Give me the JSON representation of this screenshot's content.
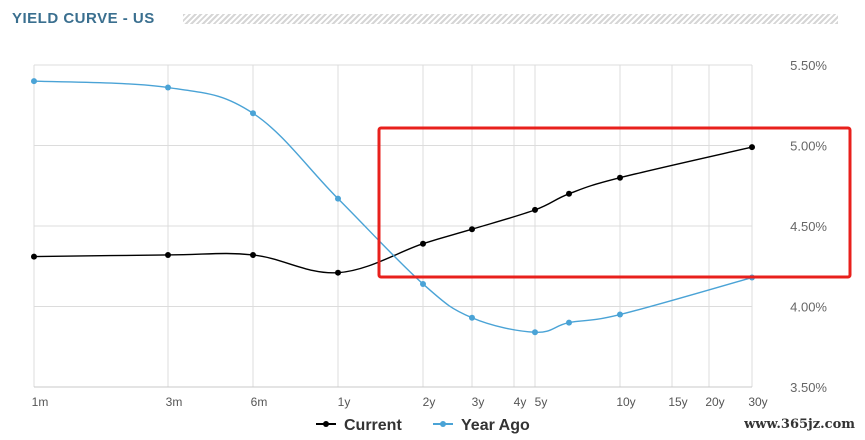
{
  "header": {
    "title": "YIELD CURVE - US"
  },
  "watermark": "www.365jz.com",
  "colors": {
    "current": "#000000",
    "year_ago": "#4aa3d6",
    "highlight": "#e8201c",
    "grid": "#dcdcdc"
  },
  "chart_data": {
    "type": "line",
    "title": "YIELD CURVE - US",
    "xlabel": "",
    "ylabel": "",
    "categories": [
      "1m",
      "3m",
      "6m",
      "1y",
      "2y",
      "3y",
      "4y",
      "5y",
      "10y",
      "15y",
      "20y",
      "30y"
    ],
    "x_maturity_months": [
      1,
      3,
      6,
      12,
      24,
      36,
      48,
      60,
      120,
      180,
      240,
      360
    ],
    "ylim": [
      3.5,
      5.5
    ],
    "yticks": [
      "3.50%",
      "4.00%",
      "4.50%",
      "5.00%",
      "5.50%"
    ],
    "grid": true,
    "legend_position": "bottom-center",
    "series": [
      {
        "name": "Current",
        "points": [
          {
            "x": 1,
            "y": 4.31
          },
          {
            "x": 3,
            "y": 4.32
          },
          {
            "x": 6,
            "y": 4.32
          },
          {
            "x": 12,
            "y": 4.21
          },
          {
            "x": 24,
            "y": 4.39
          },
          {
            "x": 36,
            "y": 4.48
          },
          {
            "x": 60,
            "y": 4.6
          },
          {
            "x": 84,
            "y": 4.7
          },
          {
            "x": 120,
            "y": 4.8
          },
          {
            "x": 360,
            "y": 4.99
          }
        ]
      },
      {
        "name": "Year Ago",
        "points": [
          {
            "x": 1,
            "y": 5.4
          },
          {
            "x": 3,
            "y": 5.36
          },
          {
            "x": 6,
            "y": 5.2
          },
          {
            "x": 12,
            "y": 4.67
          },
          {
            "x": 24,
            "y": 4.14
          },
          {
            "x": 36,
            "y": 3.93
          },
          {
            "x": 60,
            "y": 3.84
          },
          {
            "x": 84,
            "y": 3.9
          },
          {
            "x": 120,
            "y": 3.95
          },
          {
            "x": 360,
            "y": 4.18
          }
        ]
      }
    ]
  }
}
